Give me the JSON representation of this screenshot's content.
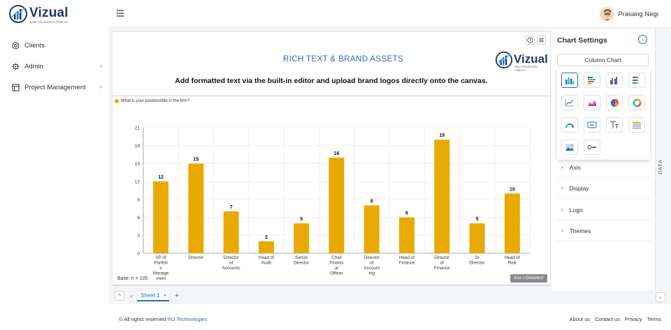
{
  "app": {
    "name": "Vizual",
    "tagline": "Data Visualization Platform"
  },
  "sidebar": {
    "items": [
      {
        "label": "Clients",
        "icon": "target-icon",
        "has_children": false
      },
      {
        "label": "Admin",
        "icon": "gear-icon",
        "has_children": true
      },
      {
        "label": "Project Management",
        "icon": "board-icon",
        "has_children": true
      }
    ]
  },
  "header": {
    "user_name": "Prasang Negi"
  },
  "canvas": {
    "title": "RICH TEXT & BRAND ASSETS",
    "subtitle": "Add formatted text via the built-in editor and upload brand logos directly onto the canvas.",
    "brand_logo": "Vizual",
    "brand_tag": "Data Visualization Platform",
    "base_label": "Base: n = 105",
    "esc_label": "Esc / Deselect"
  },
  "chart_data": {
    "type": "bar",
    "title": "",
    "legend": "What is your position/title in the firm?",
    "color": "#E8AA00",
    "categories": [
      [
        "VP of",
        "Portfoli",
        "o",
        "Manage",
        "ment"
      ],
      [
        "Director"
      ],
      [
        "Director",
        "of",
        "Accounts"
      ],
      [
        "Head of",
        "Audit"
      ],
      [
        "Senior",
        "Director"
      ],
      [
        "Chief",
        "Financi",
        "al",
        "Officer"
      ],
      [
        "Director",
        "of",
        "Account",
        "ing"
      ],
      [
        "Head of",
        "Finance"
      ],
      [
        "Director",
        "of",
        "Finance"
      ],
      [
        "Sr",
        "Director"
      ],
      [
        "Head of",
        "Risk"
      ]
    ],
    "values": [
      12,
      15,
      7,
      2,
      5,
      16,
      8,
      6,
      19,
      5,
      10
    ],
    "ylim": [
      0,
      21
    ],
    "yticks": [
      0,
      3,
      6,
      9,
      12,
      15,
      18,
      21
    ],
    "grid": true
  },
  "sheets": [
    {
      "label": "Sheet 1",
      "active": true
    }
  ],
  "settings": {
    "title": "Chart Settings",
    "chart_type": "Column Chart",
    "sections": [
      "Axis",
      "Display",
      "Logo",
      "Themes"
    ],
    "data_tab": "DATA"
  },
  "footer": {
    "copyright": "© All rights reserved",
    "company": "INJ Technologies",
    "links": [
      "About us",
      "Contact us",
      "Privacy",
      "Terms"
    ]
  },
  "colors": {
    "accent": "#2b6bb3",
    "bar": "#E8AA00",
    "brand_dark": "#1e3a5f"
  }
}
